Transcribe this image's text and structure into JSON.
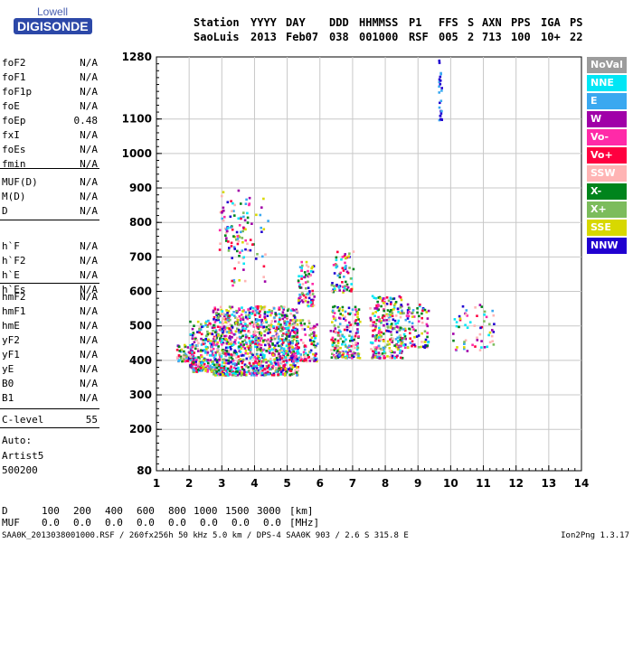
{
  "logo": {
    "line1": "Lowell",
    "line2": "DIGISONDE"
  },
  "header": {
    "labels": [
      "Station",
      "YYYY",
      "DAY",
      "DDD",
      "HHMMSS",
      "P1",
      "FFS",
      "S",
      "AXN",
      "PPS",
      "IGA",
      "PS"
    ],
    "values": [
      "SaoLuis",
      "2013",
      "Feb07",
      "038",
      "001000",
      "RSF",
      "005",
      "2",
      "713",
      "100",
      "10+",
      "22"
    ]
  },
  "params": {
    "g1": [
      {
        "name": "foF2",
        "value": "N/A"
      },
      {
        "name": "foF1",
        "value": "N/A"
      },
      {
        "name": "foF1p",
        "value": "N/A"
      },
      {
        "name": "foE",
        "value": "N/A"
      },
      {
        "name": "foEp",
        "value": "0.48"
      },
      {
        "name": "fxI",
        "value": "N/A"
      },
      {
        "name": "foEs",
        "value": "N/A"
      },
      {
        "name": "fmin",
        "value": "N/A"
      }
    ],
    "g2": [
      {
        "name": "MUF(D)",
        "value": "N/A"
      },
      {
        "name": "M(D)",
        "value": "N/A"
      },
      {
        "name": "D",
        "value": "N/A"
      }
    ],
    "g3": [
      {
        "name": "h`F",
        "value": "N/A"
      },
      {
        "name": "h`F2",
        "value": "N/A"
      },
      {
        "name": "h`E",
        "value": "N/A"
      },
      {
        "name": "h`Es",
        "value": "N/A"
      }
    ],
    "g4": [
      {
        "name": "hmF2",
        "value": "N/A"
      },
      {
        "name": "hmF1",
        "value": "N/A"
      },
      {
        "name": "hmE",
        "value": "N/A"
      },
      {
        "name": "yF2",
        "value": "N/A"
      },
      {
        "name": "yF1",
        "value": "N/A"
      },
      {
        "name": "yE",
        "value": "N/A"
      },
      {
        "name": "B0",
        "value": "N/A"
      },
      {
        "name": "B1",
        "value": "N/A"
      }
    ],
    "g5": [
      {
        "name": "C-level",
        "value": "55"
      }
    ]
  },
  "auto": {
    "line1": "Auto:",
    "line2": "Artist5",
    "line3": "500200"
  },
  "legend": [
    {
      "label": "NoVal",
      "color": "#9c9c9c"
    },
    {
      "label": "NNE",
      "color": "#00e6f5"
    },
    {
      "label": "E",
      "color": "#3aa8f0"
    },
    {
      "label": "W",
      "color": "#a000a8"
    },
    {
      "label": "Vo-",
      "color": "#ff2aa8"
    },
    {
      "label": "Vo+",
      "color": "#ff0040"
    },
    {
      "label": "SSW",
      "color": "#ffb4b4"
    },
    {
      "label": "X-",
      "color": "#00841c"
    },
    {
      "label": "X+",
      "color": "#7cbc5c"
    },
    {
      "label": "SSE",
      "color": "#d8d800"
    },
    {
      "label": "NNW",
      "color": "#2000d0"
    }
  ],
  "bottom": {
    "d_label": "D",
    "d_values": [
      "100",
      "200",
      "400",
      "600",
      "800",
      "1000",
      "1500",
      "3000"
    ],
    "d_unit": "[km]",
    "muf_label": "MUF",
    "muf_values": [
      "0.0",
      "0.0",
      "0.0",
      "0.0",
      "0.0",
      "0.0",
      "0.0",
      "0.0"
    ],
    "muf_unit": "[MHz]"
  },
  "footer": {
    "left": "SAA0K_2013038001000.RSF / 260fx256h 50 kHz 5.0 km / DPS-4 SAA0K 903 / 2.6 S 315.8 E",
    "right": "Ion2Png 1.3.17"
  },
  "chart_data": {
    "type": "scatter",
    "xlim": [
      1,
      14
    ],
    "ylim": [
      80,
      1280
    ],
    "x_ticks": [
      1,
      2,
      3,
      4,
      5,
      6,
      7,
      8,
      9,
      10,
      11,
      12,
      13,
      14
    ],
    "y_ticks": [
      80,
      200,
      300,
      400,
      500,
      600,
      700,
      800,
      900,
      1000,
      1100,
      1280
    ],
    "grid": true,
    "clusters": [
      {
        "x_range": [
          1.6,
          2.1
        ],
        "h_range": [
          400,
          450
        ],
        "count": 60
      },
      {
        "x_range": [
          2.0,
          2.7
        ],
        "h_range": [
          370,
          520
        ],
        "count": 200
      },
      {
        "x_range": [
          2.7,
          5.3
        ],
        "h_range": [
          360,
          560
        ],
        "count": 1100
      },
      {
        "x_range": [
          2.9,
          3.9
        ],
        "h_range": [
          720,
          900
        ],
        "count": 70
      },
      {
        "x_range": [
          3.2,
          4.4
        ],
        "h_range": [
          620,
          890
        ],
        "count": 45
      },
      {
        "x_range": [
          5.3,
          5.8
        ],
        "h_range": [
          560,
          690
        ],
        "count": 80
      },
      {
        "x_range": [
          4.9,
          5.9
        ],
        "h_range": [
          400,
          520
        ],
        "count": 160
      },
      {
        "x_range": [
          6.3,
          7.0
        ],
        "h_range": [
          600,
          720
        ],
        "count": 70
      },
      {
        "x_range": [
          6.3,
          7.2
        ],
        "h_range": [
          410,
          560
        ],
        "count": 200
      },
      {
        "x_range": [
          7.5,
          8.5
        ],
        "h_range": [
          410,
          590
        ],
        "count": 260
      },
      {
        "x_range": [
          8.4,
          9.3
        ],
        "h_range": [
          440,
          570
        ],
        "count": 90
      },
      {
        "x_range": [
          10.0,
          11.3
        ],
        "h_range": [
          430,
          570
        ],
        "count": 60
      },
      {
        "x_range": [
          9.6,
          9.7
        ],
        "h_range": [
          1100,
          1280
        ],
        "count": 25
      }
    ]
  }
}
